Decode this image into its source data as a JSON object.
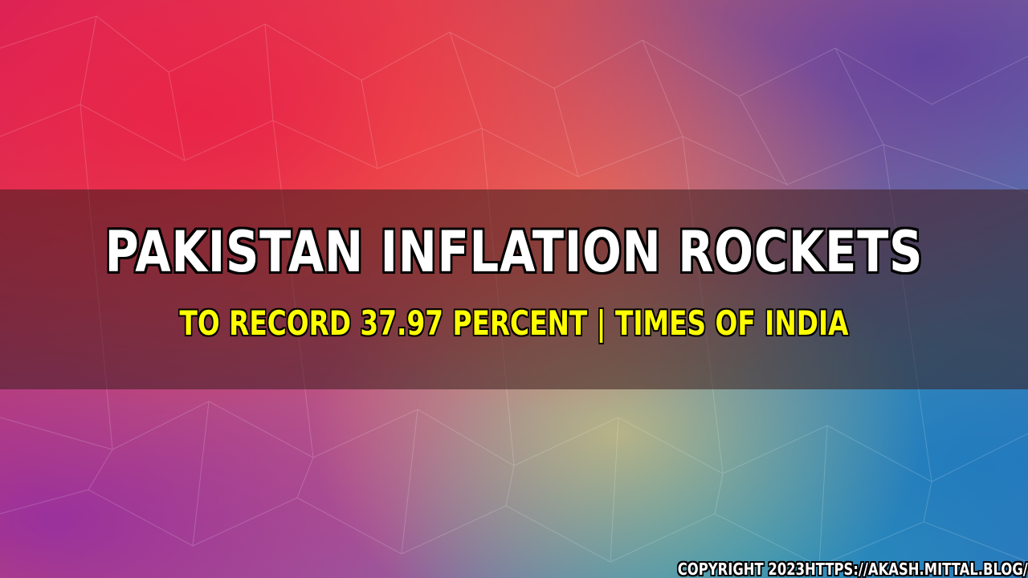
{
  "background": {
    "style": "low-poly gradient",
    "colors": [
      "#e81e46",
      "#f57850",
      "#5a3ca0",
      "#e1c878",
      "#1e78be",
      "#28aab4",
      "#8c28aa"
    ]
  },
  "banner": {
    "band_color": "#3c1e1e",
    "headline": "PAKISTAN INFLATION ROCKETS",
    "subline": "TO RECORD 37.97 PERCENT | TIMES OF INDIA",
    "headline_color": "#ffffff",
    "subline_color": "#fffe00"
  },
  "footer": {
    "copyright": "COPYRIGHT 2023HTTPS://AKASH.MITTAL.BLOG/"
  }
}
